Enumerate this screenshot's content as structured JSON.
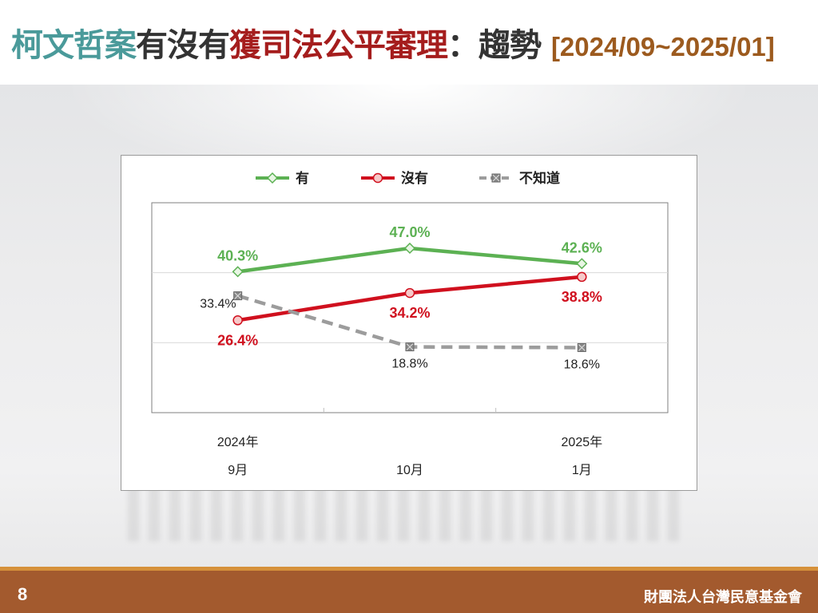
{
  "title": {
    "part1": "柯文哲案",
    "part2": "有沒有",
    "part3": "獲司法公平審理",
    "part4": "：趨勢",
    "date_range": "[2024/09~2025/01]"
  },
  "colors": {
    "yes": "#5cb153",
    "no": "#d0101e",
    "unknown": "#9c9c9c",
    "title_teal": "#4a9a9a",
    "title_red": "#a51d1d",
    "footer": "#a35a2e"
  },
  "footer": {
    "page_number": "8",
    "organization": "財團法人台灣民意基金會"
  },
  "chart_data": {
    "type": "line",
    "categories": [
      [
        "2024年",
        "9月"
      ],
      [
        "",
        "10月"
      ],
      [
        "2025年",
        "1月"
      ]
    ],
    "ylim": [
      0,
      60
    ],
    "gridlines": [
      20,
      40
    ],
    "legend_position": "top",
    "series": [
      {
        "key": "yes",
        "name": "有",
        "values": [
          40.3,
          47.0,
          42.6
        ],
        "labels": [
          "40.3%",
          "47.0%",
          "42.6%"
        ],
        "marker": "diamond",
        "dash": false,
        "bold_labels": true
      },
      {
        "key": "no",
        "name": "沒有",
        "values": [
          26.4,
          34.2,
          38.8
        ],
        "labels": [
          "26.4%",
          "34.2%",
          "38.8%"
        ],
        "marker": "circle",
        "dash": false,
        "bold_labels": true
      },
      {
        "key": "unknown",
        "name": "不知道",
        "values": [
          33.4,
          18.8,
          18.6
        ],
        "labels": [
          "33.4%",
          "18.8%",
          "18.6%"
        ],
        "marker": "square-x",
        "dash": true,
        "bold_labels": false
      }
    ]
  }
}
